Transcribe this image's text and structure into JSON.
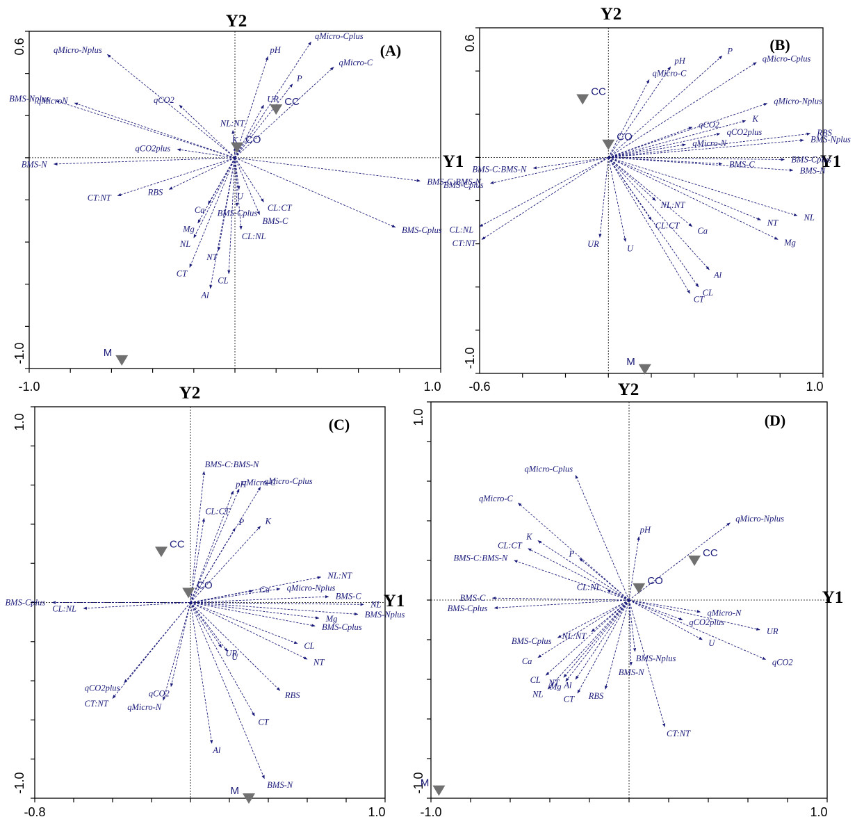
{
  "chart_data": [
    {
      "type": "scatter",
      "panel": "(A)",
      "xlim": [
        -1.0,
        1.0
      ],
      "ylim": [
        -1.0,
        0.6
      ],
      "x_tick_labels": [
        "-1.0",
        "1.0"
      ],
      "y_tick_labels": [
        "0.6",
        "-1.0"
      ],
      "vertical_axis_label": "Y2",
      "horizontal_axis_label": "",
      "vectors": [
        {
          "name": "qMicro-Nplus",
          "x": -0.62,
          "y": 0.49
        },
        {
          "name": "qMicro-Cplus",
          "x": 0.37,
          "y": 0.55
        },
        {
          "name": "pH",
          "x": 0.16,
          "y": 0.48
        },
        {
          "name": "qMicro-C",
          "x": 0.48,
          "y": 0.43
        },
        {
          "name": "BMS-Nplus",
          "x": -0.87,
          "y": 0.27
        },
        {
          "name": "qMicroN",
          "x": -0.78,
          "y": 0.26
        },
        {
          "name": "qCO2",
          "x": -0.27,
          "y": 0.25
        },
        {
          "name": "P",
          "x": 0.28,
          "y": 0.35
        },
        {
          "name": "UR",
          "x": 0.14,
          "y": 0.25
        },
        {
          "name": "NL:NT",
          "x": -0.01,
          "y": 0.13
        },
        {
          "name": "K",
          "x": 0.0,
          "y": 0.05
        },
        {
          "name": "qCO2plus",
          "x": -0.28,
          "y": 0.04
        },
        {
          "name": "BMS-N",
          "x": -0.88,
          "y": -0.03
        },
        {
          "name": "BMS-C:BMS-N",
          "x": 0.9,
          "y": -0.11
        },
        {
          "name": "RBS",
          "x": -0.32,
          "y": -0.15
        },
        {
          "name": "CT:NT",
          "x": -0.57,
          "y": -0.18
        },
        {
          "name": "U",
          "x": 0.02,
          "y": -0.15
        },
        {
          "name": "CL:CT",
          "x": 0.14,
          "y": -0.21
        },
        {
          "name": "Ca",
          "x": -0.13,
          "y": -0.22
        },
        {
          "name": "BMS-Cplus",
          "x": 0.01,
          "y": -0.23
        },
        {
          "name": "BMS-C",
          "x": 0.12,
          "y": -0.27
        },
        {
          "name": "BMS-Cplus",
          "x": 0.78,
          "y": -0.33
        },
        {
          "name": "Mg",
          "x": -0.18,
          "y": -0.31
        },
        {
          "name": "CL:NL",
          "x": 0.03,
          "y": -0.34
        },
        {
          "name": "NL",
          "x": -0.2,
          "y": -0.38
        },
        {
          "name": "NT",
          "x": -0.08,
          "y": -0.44
        },
        {
          "name": "CT",
          "x": -0.22,
          "y": -0.52
        },
        {
          "name": "CL",
          "x": -0.03,
          "y": -0.55
        },
        {
          "name": "Al",
          "x": -0.12,
          "y": -0.62
        }
      ],
      "centroids": [
        {
          "name": "CC",
          "x": 0.2,
          "y": 0.23
        },
        {
          "name": "CO",
          "x": 0.01,
          "y": 0.05
        },
        {
          "name": "M",
          "x": -0.55,
          "y": -0.96
        }
      ]
    },
    {
      "type": "scatter",
      "panel": "(B)",
      "xlim": [
        -0.6,
        1.0
      ],
      "ylim": [
        -1.0,
        0.6
      ],
      "x_tick_labels": [
        "-0.6",
        "1.0"
      ],
      "y_tick_labels": [
        "0.6",
        "-1.0"
      ],
      "vertical_axis_label": "Y2",
      "horizontal_axis_label": "Y1",
      "vectors": [
        {
          "name": "P",
          "x": 0.53,
          "y": 0.47
        },
        {
          "name": "qMicro-Cplus",
          "x": 0.69,
          "y": 0.44
        },
        {
          "name": "pH",
          "x": 0.29,
          "y": 0.42
        },
        {
          "name": "qMicro-C",
          "x": 0.19,
          "y": 0.36
        },
        {
          "name": "qMicro-Nplus",
          "x": 0.74,
          "y": 0.25
        },
        {
          "name": "K",
          "x": 0.64,
          "y": 0.17
        },
        {
          "name": "qCO2",
          "x": 0.39,
          "y": 0.14
        },
        {
          "name": "qCO2plus",
          "x": 0.52,
          "y": 0.11
        },
        {
          "name": "RBS",
          "x": 0.94,
          "y": 0.11
        },
        {
          "name": "qMicro-N",
          "x": 0.36,
          "y": 0.06
        },
        {
          "name": "BMS-Nplus",
          "x": 0.91,
          "y": 0.08
        },
        {
          "name": "BMS-Cplus",
          "x": 0.82,
          "y": -0.01
        },
        {
          "name": "BMS-C",
          "x": 0.53,
          "y": -0.03
        },
        {
          "name": "BMS-N",
          "x": 0.86,
          "y": -0.06
        },
        {
          "name": "BMS-C:BMS-N",
          "x": -0.35,
          "y": -0.05
        },
        {
          "name": "BMS-Cplus",
          "x": -0.55,
          "y": -0.12
        },
        {
          "name": "NL:NT",
          "x": 0.22,
          "y": -0.2
        },
        {
          "name": "NL",
          "x": 0.88,
          "y": -0.27
        },
        {
          "name": "NT",
          "x": 0.71,
          "y": -0.29
        },
        {
          "name": "CL:CT",
          "x": 0.2,
          "y": -0.29
        },
        {
          "name": "Ca",
          "x": 0.39,
          "y": -0.32
        },
        {
          "name": "CL:NL",
          "x": -0.6,
          "y": -0.32
        },
        {
          "name": "Mg",
          "x": 0.79,
          "y": -0.38
        },
        {
          "name": "CT:NT",
          "x": -0.59,
          "y": -0.38
        },
        {
          "name": "UR",
          "x": -0.04,
          "y": -0.37
        },
        {
          "name": "U",
          "x": 0.08,
          "y": -0.39
        },
        {
          "name": "Al",
          "x": 0.47,
          "y": -0.52
        },
        {
          "name": "CL",
          "x": 0.42,
          "y": -0.6
        },
        {
          "name": "CT",
          "x": 0.38,
          "y": -0.63
        }
      ],
      "centroids": [
        {
          "name": "CC",
          "x": -0.12,
          "y": 0.27
        },
        {
          "name": "CO",
          "x": 0.0,
          "y": 0.06
        },
        {
          "name": "M",
          "x": 0.17,
          "y": -0.98
        }
      ]
    },
    {
      "type": "scatter",
      "panel": "(C)",
      "xlim": [
        -0.8,
        1.0
      ],
      "ylim": [
        -1.0,
        1.0
      ],
      "x_tick_labels": [
        "-0.8",
        "1.0"
      ],
      "y_tick_labels": [
        "1.0",
        "-1.0"
      ],
      "vertical_axis_label": "Y2",
      "horizontal_axis_label": "Y1",
      "vectors": [
        {
          "name": "BMS-C:BMS-N",
          "x": 0.07,
          "y": 0.67
        },
        {
          "name": "qMicro-C",
          "x": 0.25,
          "y": 0.58
        },
        {
          "name": "pH",
          "x": 0.22,
          "y": 0.57
        },
        {
          "name": "qMicro-Cplus",
          "x": 0.36,
          "y": 0.59
        },
        {
          "name": "CL:CT",
          "x": 0.07,
          "y": 0.43
        },
        {
          "name": "P",
          "x": 0.23,
          "y": 0.38
        },
        {
          "name": "K",
          "x": 0.36,
          "y": 0.39
        },
        {
          "name": "NL:NT",
          "x": 0.67,
          "y": 0.13
        },
        {
          "name": "Ca",
          "x": 0.32,
          "y": 0.06
        },
        {
          "name": "qMicro-Nplus",
          "x": 0.46,
          "y": 0.07
        },
        {
          "name": "BMS-C",
          "x": 0.71,
          "y": 0.03
        },
        {
          "name": "NL",
          "x": 0.89,
          "y": -0.01
        },
        {
          "name": "BMS-Nplus",
          "x": 0.86,
          "y": -0.06
        },
        {
          "name": "Mg",
          "x": 0.66,
          "y": -0.08
        },
        {
          "name": "BMS-Cplus",
          "x": 0.64,
          "y": -0.12
        },
        {
          "name": "CL",
          "x": 0.55,
          "y": -0.21
        },
        {
          "name": "NT",
          "x": 0.6,
          "y": -0.29
        },
        {
          "name": "UR",
          "x": 0.16,
          "y": -0.23
        },
        {
          "name": "U",
          "x": 0.19,
          "y": -0.25
        },
        {
          "name": "RBS",
          "x": 0.46,
          "y": -0.45
        },
        {
          "name": "CT",
          "x": 0.33,
          "y": -0.58
        },
        {
          "name": "BMS-N",
          "x": 0.38,
          "y": -0.9
        },
        {
          "name": "Al",
          "x": 0.11,
          "y": -0.72
        },
        {
          "name": "qCO2",
          "x": -0.1,
          "y": -0.43
        },
        {
          "name": "qMicro-N",
          "x": -0.14,
          "y": -0.5
        },
        {
          "name": "qCO2plus",
          "x": -0.34,
          "y": -0.41
        },
        {
          "name": "CT:NT",
          "x": -0.4,
          "y": -0.49
        },
        {
          "name": "BMS-Cplus",
          "x": -0.71,
          "y": 0.0
        },
        {
          "name": "CL:NL",
          "x": -0.55,
          "y": -0.03
        }
      ],
      "centroids": [
        {
          "name": "CC",
          "x": -0.15,
          "y": 0.26
        },
        {
          "name": "CO",
          "x": -0.01,
          "y": 0.05
        },
        {
          "name": "M",
          "x": 0.3,
          "y": -1.0
        }
      ]
    },
    {
      "type": "scatter",
      "panel": "(D)",
      "xlim": [
        -1.0,
        1.0
      ],
      "ylim": [
        -1.0,
        1.0
      ],
      "x_tick_labels": [
        "-1.0",
        "1.0"
      ],
      "y_tick_labels": [
        "1.0",
        "-1.0"
      ],
      "vertical_axis_label": "Y2",
      "horizontal_axis_label": "Y1",
      "vectors": [
        {
          "name": "qMicro-Cplus",
          "x": -0.27,
          "y": 0.63
        },
        {
          "name": "qMicro-C",
          "x": -0.56,
          "y": 0.49
        },
        {
          "name": "pH",
          "x": 0.05,
          "y": 0.32
        },
        {
          "name": "qMicro-Nplus",
          "x": 0.51,
          "y": 0.39
        },
        {
          "name": "K",
          "x": -0.46,
          "y": 0.3
        },
        {
          "name": "CL:CT",
          "x": -0.51,
          "y": 0.26
        },
        {
          "name": "P",
          "x": -0.25,
          "y": 0.21
        },
        {
          "name": "BMS-C:BMS-N",
          "x": -0.58,
          "y": 0.2
        },
        {
          "name": "CL:NL",
          "x": -0.11,
          "y": 0.05
        },
        {
          "name": "BMS-C",
          "x": -0.69,
          "y": 0.01
        },
        {
          "name": "BMS-Cplus",
          "x": -0.68,
          "y": -0.04
        },
        {
          "name": "qMicro-N",
          "x": 0.36,
          "y": -0.06
        },
        {
          "name": "qCO2plus",
          "x": 0.27,
          "y": -0.1
        },
        {
          "name": "UR",
          "x": 0.66,
          "y": -0.15
        },
        {
          "name": "qCO2",
          "x": 0.69,
          "y": -0.3
        },
        {
          "name": "U",
          "x": 0.37,
          "y": -0.2
        },
        {
          "name": "BMS-Cplus",
          "x": -0.36,
          "y": -0.19
        },
        {
          "name": "NL:NT",
          "x": -0.19,
          "y": -0.16
        },
        {
          "name": "BMS-Nplus",
          "x": 0.03,
          "y": -0.26
        },
        {
          "name": "BMS-N",
          "x": 0.01,
          "y": -0.33
        },
        {
          "name": "Ca",
          "x": -0.46,
          "y": -0.29
        },
        {
          "name": "CL",
          "x": -0.42,
          "y": -0.38
        },
        {
          "name": "NT",
          "x": -0.33,
          "y": -0.39
        },
        {
          "name": "NL",
          "x": -0.41,
          "y": -0.45
        },
        {
          "name": "Mg",
          "x": -0.32,
          "y": -0.41
        },
        {
          "name": "Al",
          "x": -0.27,
          "y": -0.4
        },
        {
          "name": "CT",
          "x": -0.26,
          "y": -0.47
        },
        {
          "name": "RBS",
          "x": -0.12,
          "y": -0.45
        },
        {
          "name": "CT:NT",
          "x": 0.18,
          "y": -0.64
        }
      ],
      "centroids": [
        {
          "name": "CC",
          "x": 0.33,
          "y": 0.2
        },
        {
          "name": "CO",
          "x": 0.05,
          "y": 0.06
        },
        {
          "name": "M",
          "x": -0.96,
          "y": -0.96
        }
      ]
    }
  ]
}
